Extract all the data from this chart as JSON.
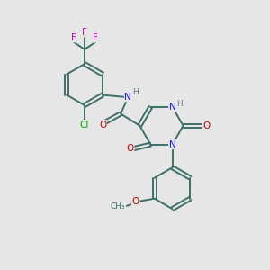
{
  "bg_color": "#e6e6e6",
  "bond_color": "#3d7068",
  "bond_width": 1.4,
  "atom_colors": {
    "N": "#1a1aff",
    "O": "#cc0000",
    "F": "#cc00cc",
    "Cl": "#00aa00",
    "H": "#607080"
  },
  "font_size": 7.5
}
